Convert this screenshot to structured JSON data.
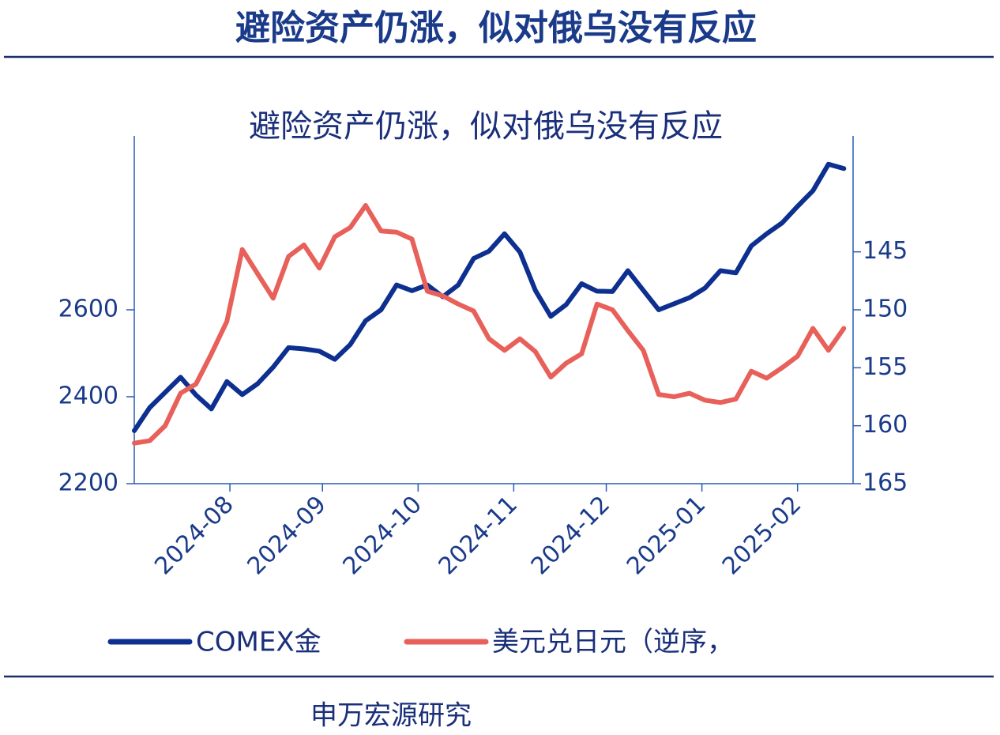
{
  "header": {
    "title": "避险资产仍涨，似对俄乌没有反应"
  },
  "footer": {
    "source": "申万宏源研究"
  },
  "chart_data": {
    "type": "line",
    "title": "避险资产仍涨，似对俄乌没有反应",
    "x": [
      0,
      5,
      10,
      15,
      20,
      25,
      30,
      35,
      40,
      45,
      50,
      55,
      60,
      65,
      70,
      75,
      80,
      85,
      90,
      95,
      100,
      105,
      110,
      115,
      120,
      125,
      130,
      135,
      140,
      145,
      150,
      155,
      160,
      165,
      170,
      175,
      180,
      185,
      190,
      195,
      200,
      205,
      210,
      215,
      220,
      225,
      230
    ],
    "xlim": [
      0,
      233
    ],
    "xticks": [
      {
        "value": 31,
        "label": "2024-08"
      },
      {
        "value": 61,
        "label": "2024-09"
      },
      {
        "value": 92,
        "label": "2024-10"
      },
      {
        "value": 123,
        "label": "2024-11"
      },
      {
        "value": 153,
        "label": "2024-12"
      },
      {
        "value": 184,
        "label": "2025-01"
      },
      {
        "value": 215,
        "label": "2025-02"
      }
    ],
    "ylim": [
      2200,
      3000
    ],
    "yticks": [
      2200,
      2400,
      2600
    ],
    "y2lim": [
      165,
      135
    ],
    "y2ticks": [
      145,
      150,
      155,
      160,
      165
    ],
    "legend": "bottom",
    "series": [
      {
        "name": "COMEX金",
        "color": "#0d2f8f",
        "values": [
          2322,
          2375,
          2410,
          2445,
          2404,
          2372,
          2435,
          2405,
          2430,
          2468,
          2513,
          2510,
          2505,
          2486,
          2520,
          2575,
          2600,
          2657,
          2644,
          2657,
          2630,
          2657,
          2718,
          2735,
          2775,
          2733,
          2645,
          2585,
          2612,
          2660,
          2643,
          2642,
          2690,
          2645,
          2600,
          2614,
          2628,
          2650,
          2690,
          2685,
          2747,
          2775,
          2800,
          2838,
          2874,
          2935,
          2925
        ]
      },
      {
        "name": "美元兑日元（逆序，",
        "color": "#e8605a",
        "axis": "y2",
        "values": [
          161.5,
          161.3,
          160.0,
          157.2,
          156.4,
          153.8,
          151.0,
          144.8,
          146.9,
          149.0,
          145.4,
          144.4,
          146.4,
          143.7,
          142.9,
          141.0,
          143.2,
          143.3,
          143.9,
          148.4,
          148.8,
          149.5,
          150.1,
          152.5,
          153.5,
          152.5,
          153.6,
          155.8,
          154.6,
          153.8,
          149.5,
          150.0,
          151.8,
          153.5,
          157.3,
          157.5,
          157.2,
          157.8,
          158.0,
          157.7,
          155.3,
          155.9,
          155.0,
          154.0,
          151.6,
          153.5,
          151.6
        ]
      }
    ]
  }
}
